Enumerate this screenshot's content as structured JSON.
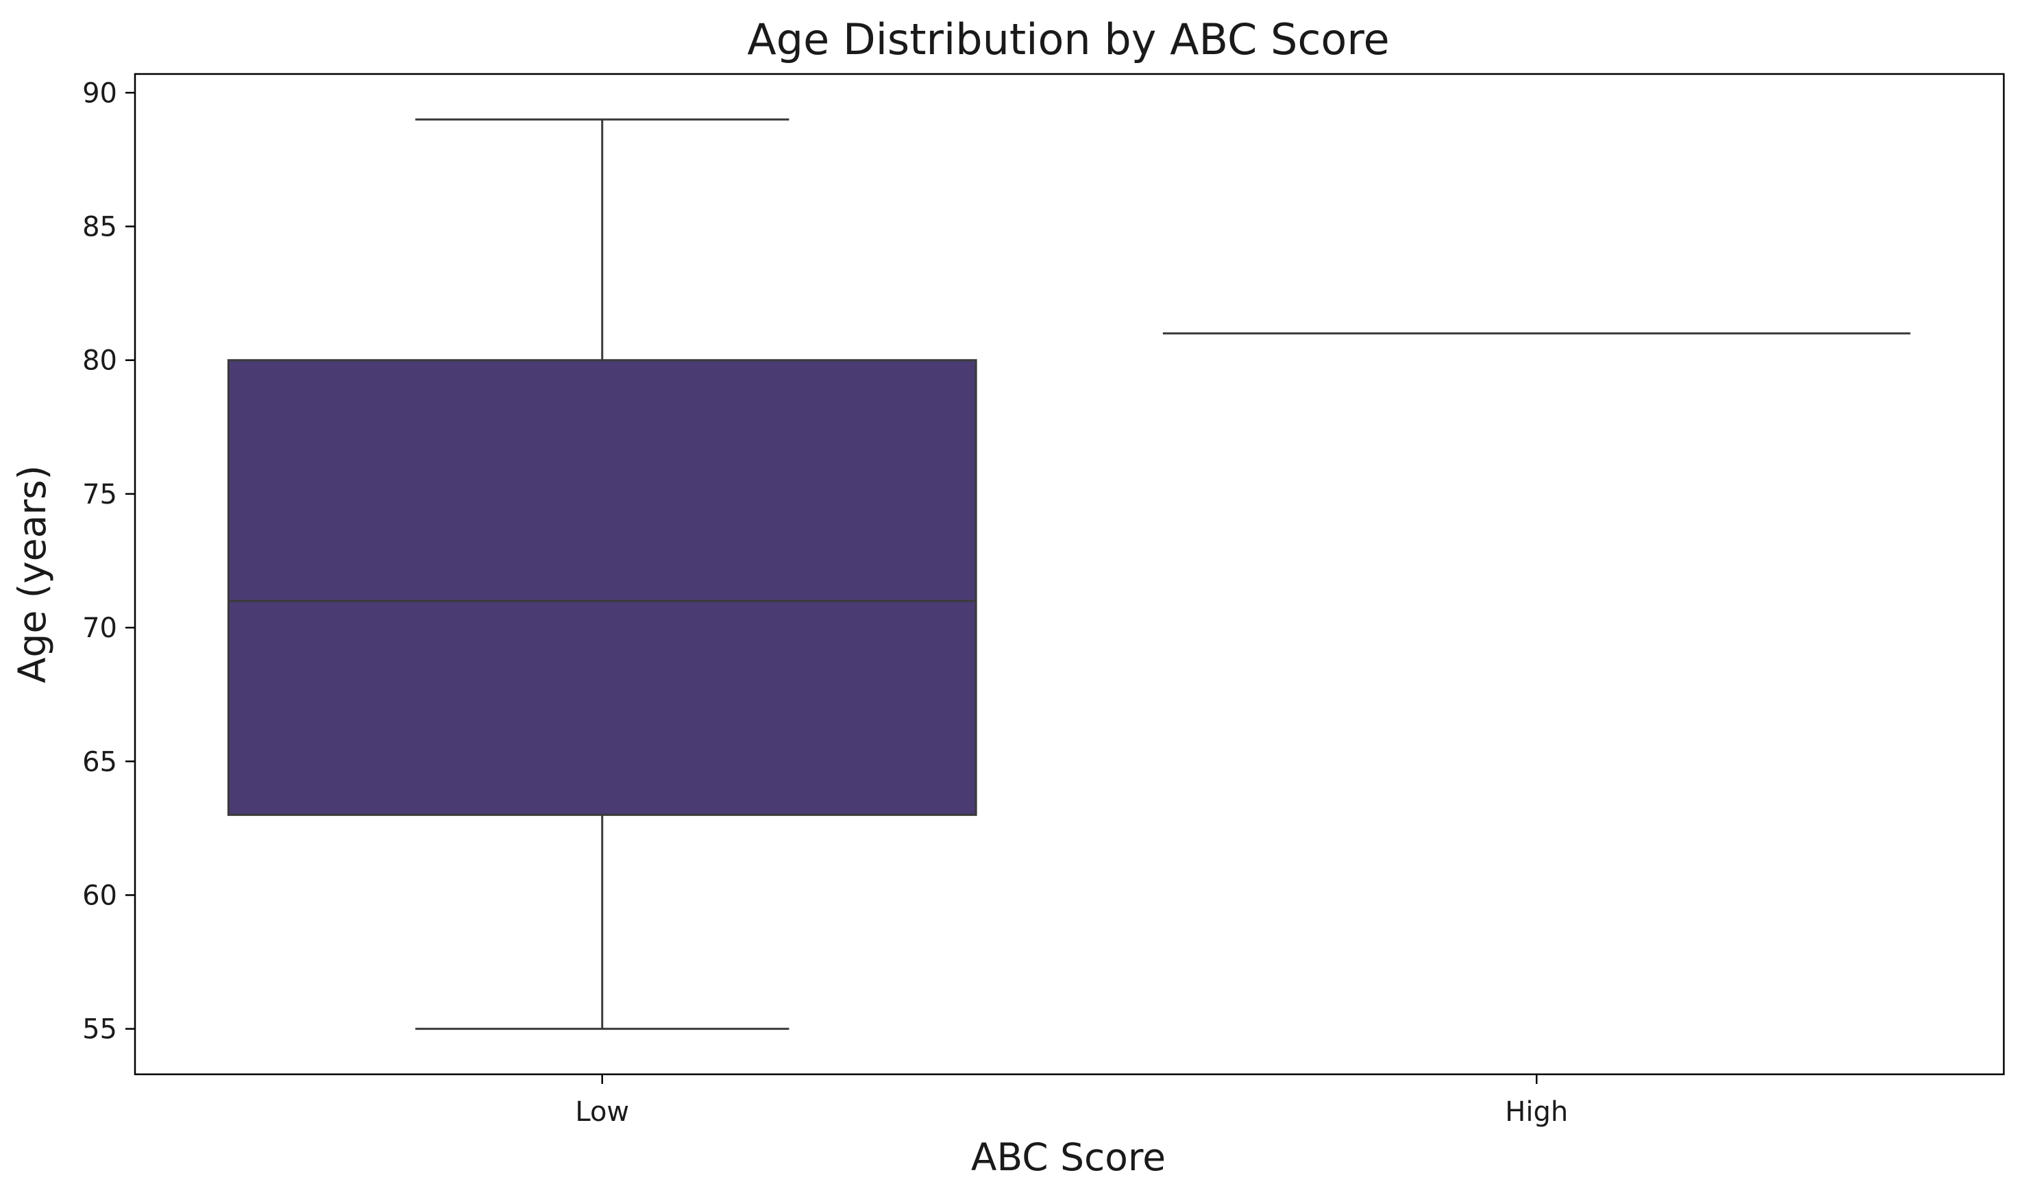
{
  "chart_data": {
    "type": "box",
    "title": "Age Distribution by ABC Score",
    "xlabel": "ABC Score",
    "ylabel": "Age (years)",
    "categories": [
      "Low",
      "High"
    ],
    "boxes": [
      {
        "category": "Low",
        "whisker_low": 55,
        "q1": 63,
        "median": 71,
        "q3": 80,
        "whisker_high": 89
      },
      {
        "category": "High",
        "whisker_low": 81,
        "q1": 81,
        "median": 81,
        "q3": 81,
        "whisker_high": 81
      }
    ],
    "yticks": [
      55,
      60,
      65,
      70,
      75,
      80,
      85,
      90
    ],
    "ylim": [
      53.3,
      90.7
    ],
    "grid": false,
    "colors": {
      "box_fill": "#4a3c72",
      "line": "#3a3a3a",
      "axis": "#000000"
    }
  }
}
